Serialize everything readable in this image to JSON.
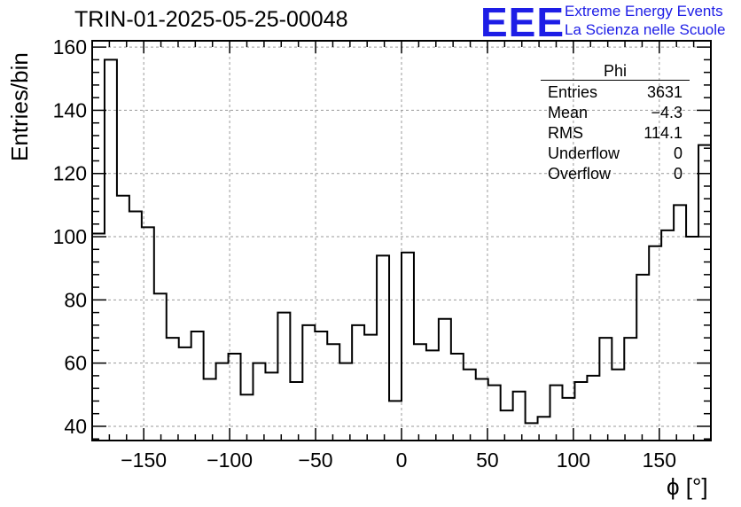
{
  "header": {
    "title": "TRIN-01-2025-05-25-00048",
    "logo_text": "EEE",
    "logo_line1": "Extreme Energy Events",
    "logo_line2": "La Scienza nelle Scuole"
  },
  "stats_box": {
    "title": "Phi",
    "rows": [
      {
        "label": "Entries",
        "value": "3631"
      },
      {
        "label": "Mean",
        "value": "−4.3"
      },
      {
        "label": "RMS",
        "value": "114.1"
      },
      {
        "label": "Underflow",
        "value": "0"
      },
      {
        "label": "Overflow",
        "value": "0"
      }
    ]
  },
  "colors": {
    "line": "#000000",
    "grid": "#9a9a9a",
    "logo": "#1d1de6"
  },
  "chart_data": {
    "type": "histogram",
    "title": "TRIN-01-2025-05-25-00048",
    "xlabel": "ϕ [°]",
    "ylabel": "Entries/bin",
    "xlim": [
      -180,
      180
    ],
    "ylim": [
      35.5,
      162
    ],
    "grid": true,
    "bin_width": 7.2,
    "x_ticks": [
      -150,
      -100,
      -50,
      0,
      50,
      100,
      150
    ],
    "x_tick_labels": [
      "−150",
      "−100",
      "−50",
      "0",
      "50",
      "100",
      "150"
    ],
    "y_ticks": [
      40,
      60,
      80,
      100,
      120,
      140,
      160
    ],
    "y_tick_labels": [
      "40",
      "60",
      "80",
      "100",
      "120",
      "140",
      "160"
    ],
    "values": [
      101,
      156,
      113,
      108,
      103,
      82,
      68,
      65,
      70,
      55,
      60,
      63,
      50,
      60,
      57,
      76,
      54,
      72,
      70,
      66,
      60,
      72,
      69,
      94,
      48,
      95,
      66,
      64,
      74,
      63,
      58,
      55,
      53,
      45,
      51,
      41,
      43,
      53,
      49,
      54,
      56,
      68,
      58,
      68,
      88,
      97,
      102,
      110,
      100,
      129
    ]
  }
}
